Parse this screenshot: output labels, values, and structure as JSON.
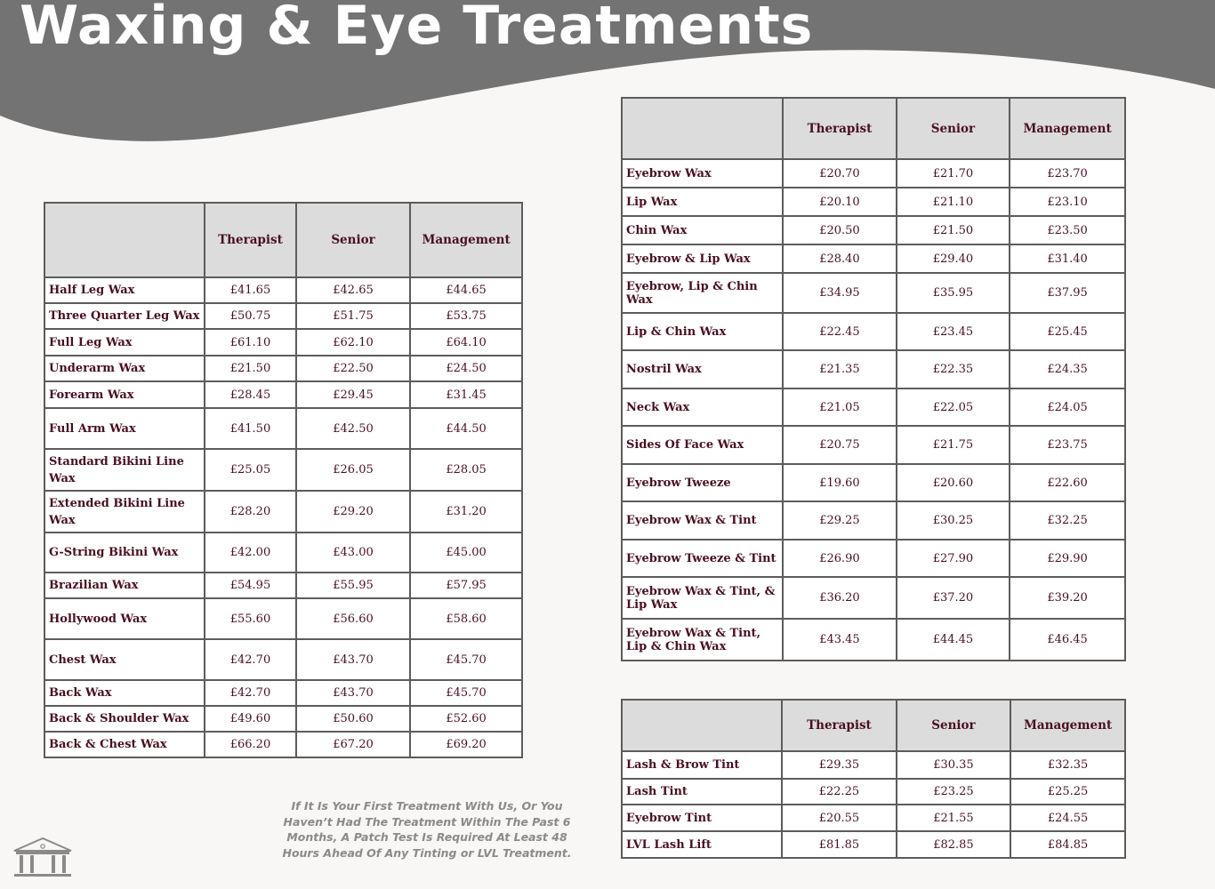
{
  "page": {
    "title": "Waxing & Eye Treatments",
    "patch_note": "If It Is Your First Treatment With Us, Or You Haven’t Had The Treatment Within The Past 6 Months, A Patch Test Is Required At Least 48 Hours Ahead Of Any Tinting  or LVL Treatment."
  },
  "colors": {
    "banner": "#737373",
    "background": "#f8f7f5",
    "text": "#4a0f1f",
    "header_fill": "#dcdcdc"
  },
  "icons": {
    "logo": "temple-icon"
  },
  "tables": {
    "body_wax": {
      "headers": [
        "",
        "Therapist",
        "Senior",
        "Management"
      ],
      "rows": [
        [
          "Half Leg Wax",
          "£41.65",
          "£42.65",
          "£44.65"
        ],
        [
          "Three Quarter Leg Wax",
          "£50.75",
          "£51.75",
          "£53.75"
        ],
        [
          "Full Leg Wax",
          "£61.10",
          "£62.10",
          "£64.10"
        ],
        [
          "Underarm Wax",
          "£21.50",
          "£22.50",
          "£24.50"
        ],
        [
          "Forearm Wax",
          "£28.45",
          "£29.45",
          "£31.45"
        ],
        [
          "Full Arm Wax",
          "£41.50",
          "£42.50",
          "£44.50"
        ],
        [
          "Standard Bikini Line Wax",
          "£25.05",
          "£26.05",
          "£28.05"
        ],
        [
          "Extended Bikini Line Wax",
          "£28.20",
          "£29.20",
          "£31.20"
        ],
        [
          "G-String Bikini Wax",
          "£42.00",
          "£43.00",
          "£45.00"
        ],
        [
          "Brazilian Wax",
          "£54.95",
          "£55.95",
          "£57.95"
        ],
        [
          "Hollywood Wax",
          "£55.60",
          "£56.60",
          "£58.60"
        ],
        [
          "Chest Wax",
          "£42.70",
          "£43.70",
          "£45.70"
        ],
        [
          "Back Wax",
          "£42.70",
          "£43.70",
          "£45.70"
        ],
        [
          "Back & Shoulder Wax",
          "£49.60",
          "£50.60",
          "£52.60"
        ],
        [
          "Back & Chest Wax",
          "£66.20",
          "£67.20",
          "£69.20"
        ]
      ]
    },
    "face_wax": {
      "headers": [
        "",
        "Therapist",
        "Senior",
        "Management"
      ],
      "rows": [
        [
          "Eyebrow Wax",
          "£20.70",
          "£21.70",
          "£23.70"
        ],
        [
          "Lip Wax",
          "£20.10",
          "£21.10",
          "£23.10"
        ],
        [
          "Chin Wax",
          "£20.50",
          "£21.50",
          "£23.50"
        ],
        [
          "Eyebrow & Lip Wax",
          "£28.40",
          "£29.40",
          "£31.40"
        ],
        [
          "Eyebrow, Lip & Chin Wax",
          "£34.95",
          "£35.95",
          "£37.95"
        ],
        [
          "Lip & Chin Wax",
          "£22.45",
          "£23.45",
          "£25.45"
        ],
        [
          "Nostril Wax",
          "£21.35",
          "£22.35",
          "£24.35"
        ],
        [
          "Neck Wax",
          "£21.05",
          "£22.05",
          "£24.05"
        ],
        [
          "Sides Of Face Wax",
          "£20.75",
          "£21.75",
          "£23.75"
        ],
        [
          "Eyebrow Tweeze",
          "£19.60",
          "£20.60",
          "£22.60"
        ],
        [
          "Eyebrow Wax & Tint",
          "£29.25",
          "£30.25",
          "£32.25"
        ],
        [
          "Eyebrow Tweeze & Tint",
          "£26.90",
          "£27.90",
          "£29.90"
        ],
        [
          "Eyebrow Wax & Tint, & Lip Wax",
          "£36.20",
          "£37.20",
          "£39.20"
        ],
        [
          "Eyebrow Wax & Tint, Lip & Chin Wax",
          "£43.45",
          "£44.45",
          "£46.45"
        ]
      ]
    },
    "tints": {
      "headers": [
        "",
        "Therapist",
        "Senior",
        "Management"
      ],
      "rows": [
        [
          "Lash & Brow Tint",
          "£29.35",
          "£30.35",
          "£32.35"
        ],
        [
          "Lash Tint",
          "£22.25",
          "£23.25",
          "£25.25"
        ],
        [
          "Eyebrow Tint",
          "£20.55",
          "£21.55",
          "£24.55"
        ],
        [
          "LVL Lash Lift",
          "£81.85",
          "£82.85",
          "£84.85"
        ]
      ]
    }
  }
}
